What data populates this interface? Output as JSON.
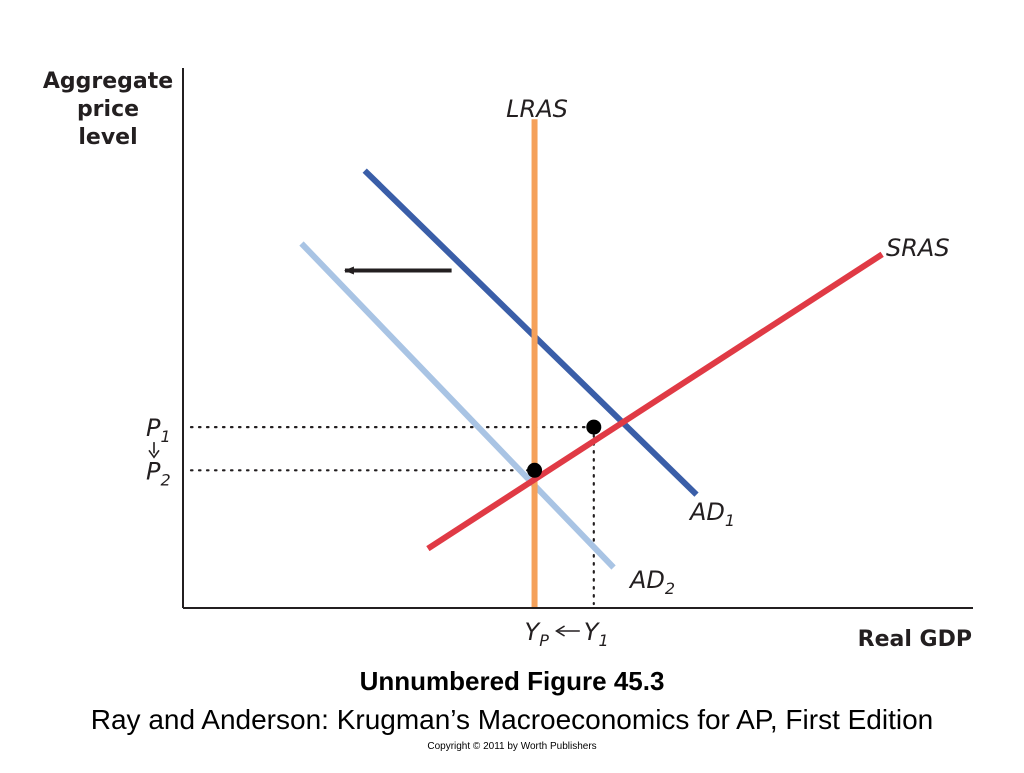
{
  "chart_data": {
    "type": "line",
    "xlabel": "Real GDP",
    "ylabel_lines": [
      "Aggregate",
      "price",
      "level"
    ],
    "grid": false,
    "xlim": [
      0,
      10
    ],
    "ylim": [
      0,
      10
    ],
    "colors": {
      "LRAS": "#f5a15a",
      "SRAS": "#e03a45",
      "AD1": "#3a5ea8",
      "AD2": "#a9c4e4",
      "arrow": "#231f20",
      "points": "#000000",
      "axes": "#231f20"
    },
    "curves": [
      {
        "key": "LRAS",
        "label": "LRAS",
        "sub": "",
        "points": [
          [
            4.45,
            0
          ],
          [
            4.45,
            9.05
          ]
        ]
      },
      {
        "key": "SRAS",
        "label": "SRAS",
        "sub": "",
        "points": [
          [
            3.1,
            1.1
          ],
          [
            8.85,
            6.55
          ]
        ]
      },
      {
        "key": "AD1",
        "label": "AD",
        "sub": "1",
        "points": [
          [
            2.3,
            8.1
          ],
          [
            6.5,
            2.1
          ]
        ]
      },
      {
        "key": "AD2",
        "label": "AD",
        "sub": "2",
        "points": [
          [
            1.5,
            6.75
          ],
          [
            5.45,
            0.75
          ]
        ]
      }
    ],
    "equilibria": [
      {
        "name": "E1",
        "x": 5.2,
        "y": 3.35
      },
      {
        "name": "E2",
        "x": 4.45,
        "y": 2.55
      }
    ],
    "shift_arrow": {
      "from": [
        3.4,
        6.25
      ],
      "to": [
        2.05,
        6.25
      ],
      "direction": "left"
    },
    "y_ticks": [
      {
        "label": "P",
        "sub": "1",
        "value": 3.35
      },
      {
        "label": "P",
        "sub": "2",
        "value": 2.55
      }
    ],
    "x_ticks": [
      {
        "label": "Y",
        "sub": "P",
        "value": 4.45
      },
      {
        "label": "Y",
        "sub": "1",
        "value": 5.2
      }
    ],
    "annotations": [
      "P1 ↓ P2",
      "YP ← Y1"
    ]
  },
  "caption": {
    "title": "Unnumbered Figure 45.3",
    "subtitle": "Ray and Anderson: Krugman’s Macroeconomics for AP, First Edition",
    "copyright": "Copyright © 2011 by Worth Publishers"
  }
}
